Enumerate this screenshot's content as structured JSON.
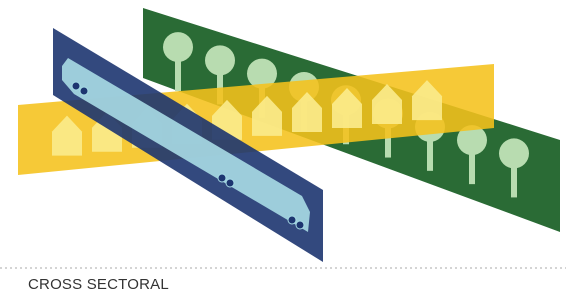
{
  "caption": "CROSS SECTORAL"
}
